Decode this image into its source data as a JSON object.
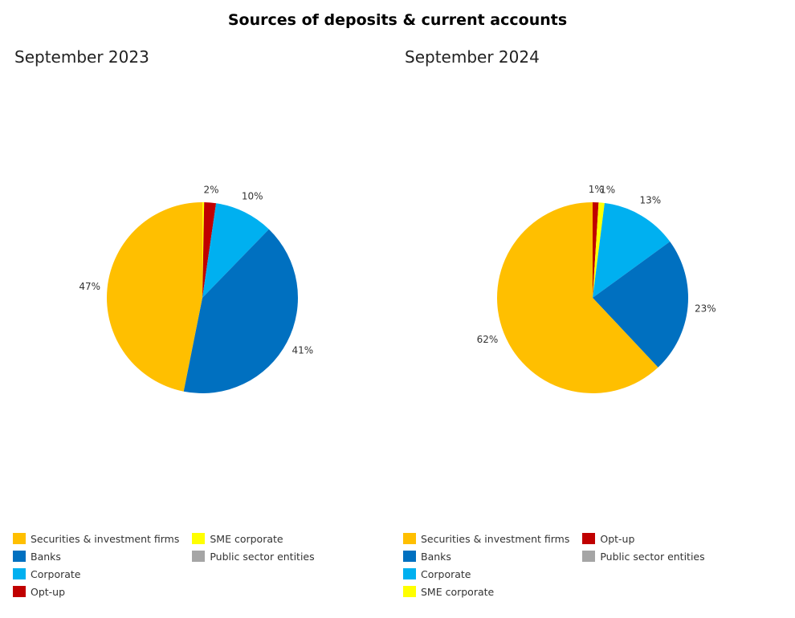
{
  "title": "Sources of deposits & current accounts",
  "colors": {
    "Securities & investment firms": "#FFBF00",
    "Banks": "#0070C0",
    "Corporate": "#00B0F0",
    "Opt-up": "#C00000",
    "SME corporate": "#FFFF00",
    "Public sector entities": "#A5A5A5"
  },
  "chart_data": [
    {
      "type": "pie",
      "title": "September 2023",
      "slices": [
        {
          "name": "SME corporate",
          "value": 0.3,
          "label": ""
        },
        {
          "name": "Opt-up",
          "value": 2,
          "label": "2%"
        },
        {
          "name": "Corporate",
          "value": 10,
          "label": "10%"
        },
        {
          "name": "Banks",
          "value": 41,
          "label": "41%"
        },
        {
          "name": "Securities & investment firms",
          "value": 47,
          "label": "47%"
        }
      ],
      "legend": [
        "Securities & investment firms",
        "Banks",
        "Corporate",
        "Opt-up",
        "SME corporate",
        "Public sector entities"
      ]
    },
    {
      "type": "pie",
      "title": "September 2024",
      "slices": [
        {
          "name": "Opt-up",
          "value": 1,
          "label": "1%"
        },
        {
          "name": "SME corporate",
          "value": 1,
          "label": "1%"
        },
        {
          "name": "Corporate",
          "value": 13,
          "label": "13%"
        },
        {
          "name": "Banks",
          "value": 23,
          "label": "23%"
        },
        {
          "name": "Securities & investment firms",
          "value": 62,
          "label": "62%"
        }
      ],
      "legend": [
        "Securities & investment firms",
        "Banks",
        "Corporate",
        "SME corporate",
        "Opt-up",
        "Public sector entities"
      ]
    }
  ]
}
